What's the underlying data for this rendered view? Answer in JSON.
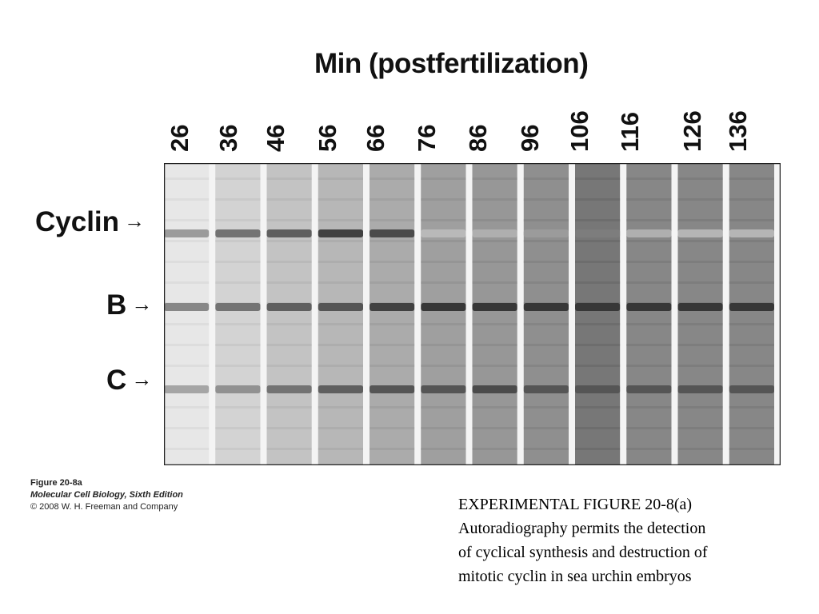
{
  "figure": {
    "axis_title": "Min (postfertilization)",
    "lanes": [
      "26",
      "36",
      "46",
      "56",
      "66",
      "76",
      "86",
      "96",
      "106",
      "116",
      "126",
      "136"
    ],
    "band_labels": {
      "cyclin": "Cyclin",
      "b": "B",
      "c": "C",
      "arrow": "→"
    },
    "gel": {
      "lane_darkness": [
        0.12,
        0.22,
        0.3,
        0.36,
        0.42,
        0.48,
        0.52,
        0.56,
        0.68,
        0.6,
        0.6,
        0.6
      ],
      "cyclin_band": [
        0.25,
        0.45,
        0.55,
        0.7,
        0.65,
        0.1,
        0.15,
        0.25,
        0.4,
        0.15,
        0.12,
        0.12
      ],
      "b_band": [
        0.35,
        0.45,
        0.55,
        0.6,
        0.7,
        0.75,
        0.75,
        0.75,
        0.8,
        0.8,
        0.8,
        0.8
      ],
      "c_band": [
        0.2,
        0.3,
        0.45,
        0.55,
        0.6,
        0.6,
        0.65,
        0.6,
        0.6,
        0.6,
        0.6,
        0.6
      ]
    }
  },
  "caption": {
    "figure_id": "Figure 20-8a",
    "book": "Molecular Cell Biology, Sixth Edition",
    "copyright": "© 2008 W. H. Freeman and Company"
  },
  "description": {
    "line1": "EXPERIMENTAL FIGURE 20-8(a)",
    "line2": "Autoradiography permits the detection",
    "line3": "of cyclical synthesis and destruction of",
    "line4": "mitotic cyclin in sea urchin embryos"
  }
}
